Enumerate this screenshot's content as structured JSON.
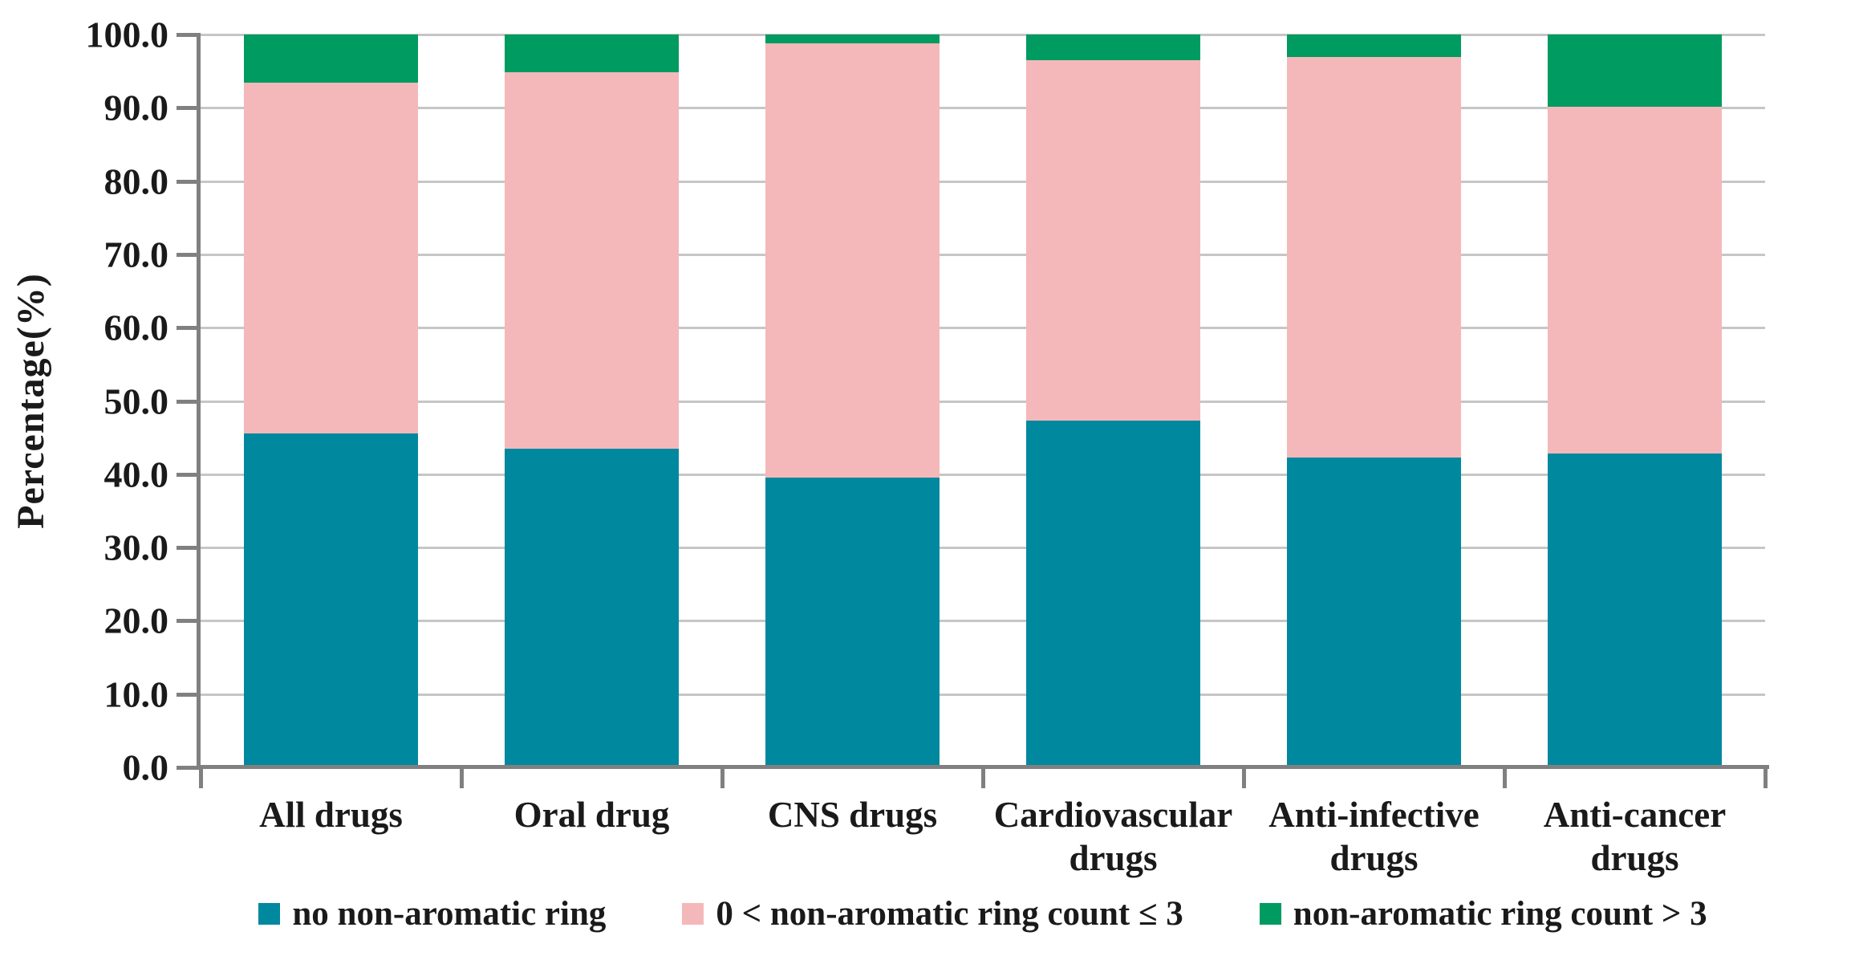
{
  "chart_data": {
    "type": "bar",
    "stacked": true,
    "orientation": "vertical",
    "ylabel": "Percentage(%)",
    "xlabel": "",
    "ylim": [
      0,
      100
    ],
    "ytick_step": 10,
    "ytick_labels": [
      "100.0",
      "90.0",
      "80.0",
      "70.0",
      "60.0",
      "50.0",
      "40.0",
      "30.0",
      "20.0",
      "10.0",
      "0.0"
    ],
    "grid": "horizontal",
    "legend_position": "bottom",
    "categories": [
      "All drugs",
      "Oral drug",
      "CNS drugs",
      "Cardiovascular drugs",
      "Anti-infective drugs",
      "Anti-cancer drugs"
    ],
    "series": [
      {
        "name": "no non-aromatic ring",
        "color": "#00889f",
        "values": [
          45.6,
          43.5,
          39.5,
          47.3,
          42.3,
          42.8
        ]
      },
      {
        "name": "0 < non-aromatic ring count ≤ 3",
        "color": "#f4b8ba",
        "values": [
          47.8,
          51.4,
          59.3,
          49.2,
          54.6,
          47.3
        ]
      },
      {
        "name": "non-aromatic ring count > 3",
        "color": "#009b60",
        "values": [
          6.6,
          5.1,
          1.2,
          3.5,
          3.1,
          9.9
        ]
      }
    ]
  },
  "colors": {
    "axis": "#808080",
    "gridline": "#c6c6c6",
    "text": "#1a1a1a",
    "background": "#ffffff"
  }
}
